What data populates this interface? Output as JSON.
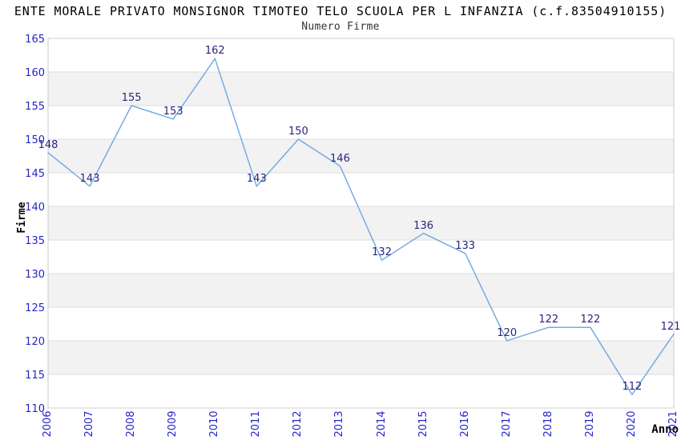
{
  "chart_data": {
    "type": "line",
    "title": "ENTE MORALE PRIVATO MONSIGNOR TIMOTEO TELO SCUOLA PER L INFANZIA (c.f.83504910155)",
    "subtitle": "Numero Firme",
    "xlabel": "Anno",
    "ylabel": "Firme",
    "categories": [
      "2006",
      "2007",
      "2008",
      "2009",
      "2010",
      "2011",
      "2012",
      "2013",
      "2014",
      "2015",
      "2016",
      "2017",
      "2018",
      "2019",
      "2020",
      "2021"
    ],
    "values": [
      148,
      143,
      155,
      153,
      162,
      143,
      150,
      146,
      132,
      136,
      133,
      120,
      122,
      122,
      112,
      121
    ],
    "ylim": [
      110,
      165
    ],
    "ytick_step": 5,
    "grid": true,
    "legend": "none",
    "colors": {
      "line": "#76ABE2",
      "data_label": "#26267E",
      "tick_label": "#2424CC",
      "band_fill": "#F2F2F2",
      "gridline": "#DDDDDD",
      "plot_border": "#CCCCCC",
      "title": "#000000",
      "subtitle": "#333333"
    }
  }
}
